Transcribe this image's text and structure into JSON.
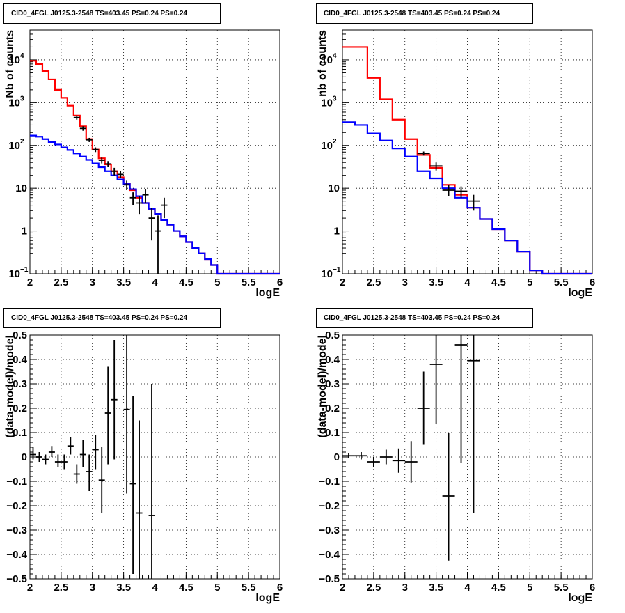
{
  "chart_data": [
    {
      "id": "p1",
      "type": "histogram",
      "title": "CID0_4FGL J0125.3-2548 TS=403.45 PS=0.24 PS=0.24",
      "xlabel": "logE",
      "ylabel": "Nb of counts",
      "xlim": [
        2,
        6
      ],
      "ylim": [
        0.1,
        50000
      ],
      "log_y": true,
      "grid": true,
      "xticks": [
        "2",
        "2.5",
        "3",
        "3.5",
        "4",
        "4.5",
        "5",
        "5.5",
        "6"
      ],
      "yticks": [
        {
          "v": 0.1,
          "b": "10",
          "e": "−1"
        },
        {
          "v": 1,
          "b": "1",
          "e": ""
        },
        {
          "v": 10,
          "b": "10",
          "e": ""
        },
        {
          "v": 100,
          "b": "10",
          "e": "2"
        },
        {
          "v": 1000,
          "b": "10",
          "e": "3"
        },
        {
          "v": 10000,
          "b": "10",
          "e": "4"
        }
      ],
      "bin_edges": [
        2.0,
        2.1,
        2.2,
        2.3,
        2.4,
        2.5,
        2.6,
        2.7,
        2.8,
        2.9,
        3.0,
        3.1,
        3.2,
        3.3,
        3.4,
        3.5,
        3.6,
        3.7,
        3.8,
        3.9,
        4.0,
        4.1,
        4.2,
        4.3,
        4.4,
        4.5,
        4.6,
        4.7,
        4.8,
        4.9,
        5.0,
        5.1,
        5.2,
        5.3,
        5.4,
        5.5,
        5.6,
        5.7,
        5.8,
        5.9,
        6.0
      ],
      "series": [
        {
          "name": "",
          "kind": "step",
          "color": "#ff0000",
          "values": [
            9500,
            8000,
            5500,
            3500,
            2000,
            1300,
            850,
            500,
            280,
            140,
            80,
            50,
            36,
            25,
            18,
            13,
            9,
            6,
            4.5,
            3.3,
            2.5,
            1.8,
            1.4,
            1.0,
            0.75,
            0.55,
            0.4,
            0.3,
            0.22,
            0.16,
            0.1,
            0.1,
            0.1,
            0.1,
            0.1,
            0.1,
            0.1,
            0.1,
            0.1,
            0.1
          ]
        },
        {
          "name": "",
          "kind": "step",
          "color": "#0000ff",
          "values": [
            170,
            160,
            140,
            120,
            105,
            90,
            78,
            65,
            55,
            46,
            38,
            31,
            25,
            20,
            16,
            12.5,
            9.5,
            6.5,
            4.5,
            3.3,
            2.5,
            1.8,
            1.4,
            1.0,
            0.75,
            0.55,
            0.4,
            0.3,
            0.22,
            0.16,
            0.1,
            0.1,
            0.1,
            0.1,
            0.1,
            0.1,
            0.1,
            0.1,
            0.1,
            0.1
          ]
        },
        {
          "name": "",
          "kind": "points",
          "color": "#000000",
          "points": [
            {
              "x": 2.75,
              "y": 450,
              "lo": 400,
              "hi": 500
            },
            {
              "x": 2.85,
              "y": 250,
              "lo": 220,
              "hi": 280
            },
            {
              "x": 2.95,
              "y": 135,
              "lo": 120,
              "hi": 150
            },
            {
              "x": 3.05,
              "y": 80,
              "lo": 70,
              "hi": 90
            },
            {
              "x": 3.15,
              "y": 45,
              "lo": 38,
              "hi": 52
            },
            {
              "x": 3.25,
              "y": 37,
              "lo": 31,
              "hi": 43
            },
            {
              "x": 3.35,
              "y": 25,
              "lo": 20,
              "hi": 30
            },
            {
              "x": 3.45,
              "y": 21,
              "lo": 17,
              "hi": 25
            },
            {
              "x": 3.55,
              "y": 12,
              "lo": 9,
              "hi": 15
            },
            {
              "x": 3.65,
              "y": 6,
              "lo": 4,
              "hi": 8
            },
            {
              "x": 3.75,
              "y": 4.5,
              "lo": 2.5,
              "hi": 6.5
            },
            {
              "x": 3.85,
              "y": 7,
              "lo": 4.5,
              "hi": 9.5
            },
            {
              "x": 3.95,
              "y": 2,
              "lo": 0.6,
              "hi": 3.5
            },
            {
              "x": 4.05,
              "y": 1,
              "lo": 0.1,
              "hi": 2.3
            },
            {
              "x": 4.15,
              "y": 4,
              "lo": 2,
              "hi": 6
            }
          ]
        }
      ]
    },
    {
      "id": "p2",
      "type": "histogram",
      "title": "CID0_4FGL J0125.3-2548 TS=403.45 PS=0.24 PS=0.24",
      "xlabel": "logE",
      "ylabel": "nb of counts",
      "xlim": [
        2,
        6
      ],
      "ylim": [
        0.1,
        50000
      ],
      "log_y": true,
      "grid": true,
      "xticks": [
        "2",
        "2.5",
        "3",
        "3.5",
        "4",
        "4.5",
        "5",
        "5.5",
        "6"
      ],
      "yticks": [
        {
          "v": 0.1,
          "b": "10",
          "e": "−1"
        },
        {
          "v": 1,
          "b": "1",
          "e": ""
        },
        {
          "v": 10,
          "b": "10",
          "e": ""
        },
        {
          "v": 100,
          "b": "10",
          "e": "2"
        },
        {
          "v": 1000,
          "b": "10",
          "e": "3"
        },
        {
          "v": 10000,
          "b": "10",
          "e": "4"
        }
      ],
      "bin_edges": [
        2.0,
        2.2,
        2.4,
        2.6,
        2.8,
        3.0,
        3.2,
        3.4,
        3.6,
        3.8,
        4.0,
        4.2,
        4.4,
        4.6,
        4.8,
        5.0,
        5.2,
        5.4,
        5.6,
        5.8,
        6.0
      ],
      "series": [
        {
          "name": "",
          "kind": "step",
          "color": "#ff0000",
          "values": [
            20000,
            20000,
            3800,
            1200,
            400,
            140,
            60,
            30,
            12,
            7,
            3.5,
            1.9,
            1.1,
            0.6,
            0.33,
            0.12,
            0.1,
            0.1,
            0.1,
            0.1
          ]
        },
        {
          "name": "",
          "kind": "step",
          "color": "#0000ff",
          "values": [
            350,
            300,
            190,
            130,
            85,
            55,
            25,
            17,
            10,
            6,
            3.5,
            1.9,
            1.1,
            0.6,
            0.33,
            0.12,
            0.1,
            0.1,
            0.1,
            0.1
          ]
        },
        {
          "name": "",
          "kind": "points",
          "color": "#000000",
          "points": [
            {
              "x": 3.3,
              "y": 65,
              "lo": 58,
              "hi": 72
            },
            {
              "x": 3.5,
              "y": 33,
              "lo": 26,
              "hi": 40
            },
            {
              "x": 3.7,
              "y": 9,
              "lo": 6.5,
              "hi": 12
            },
            {
              "x": 3.9,
              "y": 8.5,
              "lo": 6,
              "hi": 11
            },
            {
              "x": 4.1,
              "y": 5,
              "lo": 3,
              "hi": 7
            }
          ]
        }
      ]
    },
    {
      "id": "p3",
      "type": "scatter",
      "title": "CID0_4FGL J0125.3-2548 TS=403.45 PS=0.24 PS=0.24",
      "xlabel": "logE",
      "ylabel": "(data-model)/model",
      "xlim": [
        2,
        6
      ],
      "ylim": [
        -0.5,
        0.5
      ],
      "log_y": false,
      "grid": true,
      "xticks": [
        "2",
        "2.5",
        "3",
        "3.5",
        "4",
        "4.5",
        "5",
        "5.5",
        "6"
      ],
      "yticks_text": [
        "−0.5",
        "−0.4",
        "−0.3",
        "−0.2",
        "−0.1",
        "0",
        "0.1",
        "0.2",
        "0.3",
        "0.4",
        "0.5"
      ],
      "xerr": 0.05,
      "points": [
        {
          "x": 2.05,
          "y": 0.01,
          "lo": -0.01,
          "hi": 0.04
        },
        {
          "x": 2.15,
          "y": 0.0,
          "lo": -0.02,
          "hi": 0.02
        },
        {
          "x": 2.25,
          "y": -0.01,
          "lo": -0.03,
          "hi": 0.01
        },
        {
          "x": 2.35,
          "y": 0.02,
          "lo": 0.0,
          "hi": 0.045
        },
        {
          "x": 2.45,
          "y": -0.02,
          "lo": -0.04,
          "hi": 0.01
        },
        {
          "x": 2.55,
          "y": -0.02,
          "lo": -0.05,
          "hi": 0.01
        },
        {
          "x": 2.65,
          "y": 0.045,
          "lo": 0.01,
          "hi": 0.08
        },
        {
          "x": 2.75,
          "y": -0.07,
          "lo": -0.11,
          "hi": -0.03
        },
        {
          "x": 2.85,
          "y": 0.01,
          "lo": -0.04,
          "hi": 0.07
        },
        {
          "x": 2.95,
          "y": -0.06,
          "lo": -0.14,
          "hi": 0.01
        },
        {
          "x": 3.05,
          "y": 0.03,
          "lo": -0.05,
          "hi": 0.09
        },
        {
          "x": 3.15,
          "y": -0.095,
          "lo": -0.23,
          "hi": 0.04
        },
        {
          "x": 3.25,
          "y": 0.18,
          "lo": -0.03,
          "hi": 0.37
        },
        {
          "x": 3.35,
          "y": 0.235,
          "lo": -0.01,
          "hi": 0.48
        },
        {
          "x": 3.55,
          "y": 0.195,
          "lo": -0.15,
          "hi": 0.55
        },
        {
          "x": 3.65,
          "y": -0.11,
          "lo": -0.48,
          "hi": 0.25
        },
        {
          "x": 3.75,
          "y": -0.23,
          "lo": -0.55,
          "hi": 0.15
        },
        {
          "x": 3.95,
          "y": -0.24,
          "lo": -0.55,
          "hi": 0.3
        }
      ]
    },
    {
      "id": "p4",
      "type": "scatter",
      "title": "CID0_4FGL J0125.3-2548 TS=403.45 PS=0.24 PS=0.24",
      "xlabel": "logE",
      "ylabel": "(data-model)/model",
      "xlim": [
        2,
        6
      ],
      "ylim": [
        -0.5,
        0.5
      ],
      "log_y": false,
      "grid": true,
      "xticks": [
        "2",
        "2.5",
        "3",
        "3.5",
        "4",
        "4.5",
        "5",
        "5.5",
        "6"
      ],
      "yticks_text": [
        "−0.5",
        "−0.4",
        "−0.3",
        "−0.2",
        "−0.1",
        "0",
        "0.1",
        "0.2",
        "0.3",
        "0.4",
        "0.5"
      ],
      "xerr": 0.1,
      "points": [
        {
          "x": 2.1,
          "y": 0.005,
          "lo": -0.005,
          "hi": 0.015
        },
        {
          "x": 2.3,
          "y": 0.005,
          "lo": -0.01,
          "hi": 0.02
        },
        {
          "x": 2.5,
          "y": -0.02,
          "lo": -0.04,
          "hi": 0.0
        },
        {
          "x": 2.7,
          "y": 0.0,
          "lo": -0.03,
          "hi": 0.03
        },
        {
          "x": 2.9,
          "y": -0.015,
          "lo": -0.065,
          "hi": 0.035
        },
        {
          "x": 3.1,
          "y": -0.02,
          "lo": -0.105,
          "hi": 0.065
        },
        {
          "x": 3.3,
          "y": 0.2,
          "lo": 0.05,
          "hi": 0.35
        },
        {
          "x": 3.5,
          "y": 0.38,
          "lo": 0.135,
          "hi": 0.625
        },
        {
          "x": 3.7,
          "y": -0.16,
          "lo": -0.425,
          "hi": 0.1
        },
        {
          "x": 3.9,
          "y": 0.46,
          "lo": -0.025,
          "hi": 0.945
        },
        {
          "x": 4.1,
          "y": 0.395,
          "lo": -0.23,
          "hi": 1.0
        }
      ]
    }
  ]
}
